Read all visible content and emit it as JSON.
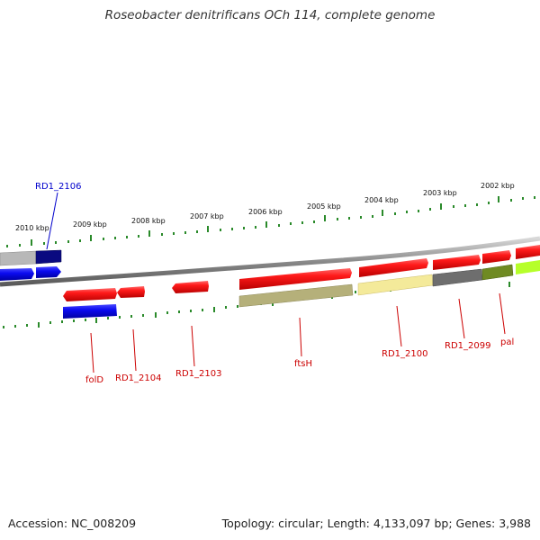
{
  "title": "Roseobacter denitrificans OCh 114, complete genome",
  "footer": {
    "accession": "Accession: NC_008209",
    "summary": "Topology: circular; Length: 4,133,097 bp; Genes: 3,988"
  },
  "scale_labels": [
    "2010 kbp",
    "2009 kbp",
    "2008 kbp",
    "2007 kbp",
    "2006 kbp",
    "2005 kbp",
    "2004 kbp",
    "2003 kbp",
    "2002 kbp"
  ],
  "gene_labels": {
    "rd1_2106": "RD1_2106",
    "folD": "folD",
    "rd1_2104": "RD1_2104",
    "rd1_2103": "RD1_2103",
    "ftsH": "ftsH",
    "rd1_2100": "RD1_2100",
    "rd1_2099": "RD1_2099",
    "pal": "pal"
  },
  "colors": {
    "forward_gene": "#ee1c1c",
    "reverse_gene": "#1010dd",
    "label_red": "#cc0000",
    "label_blue": "#0000cc",
    "backbone": "#888888",
    "tick": "#2a8a2a"
  }
}
